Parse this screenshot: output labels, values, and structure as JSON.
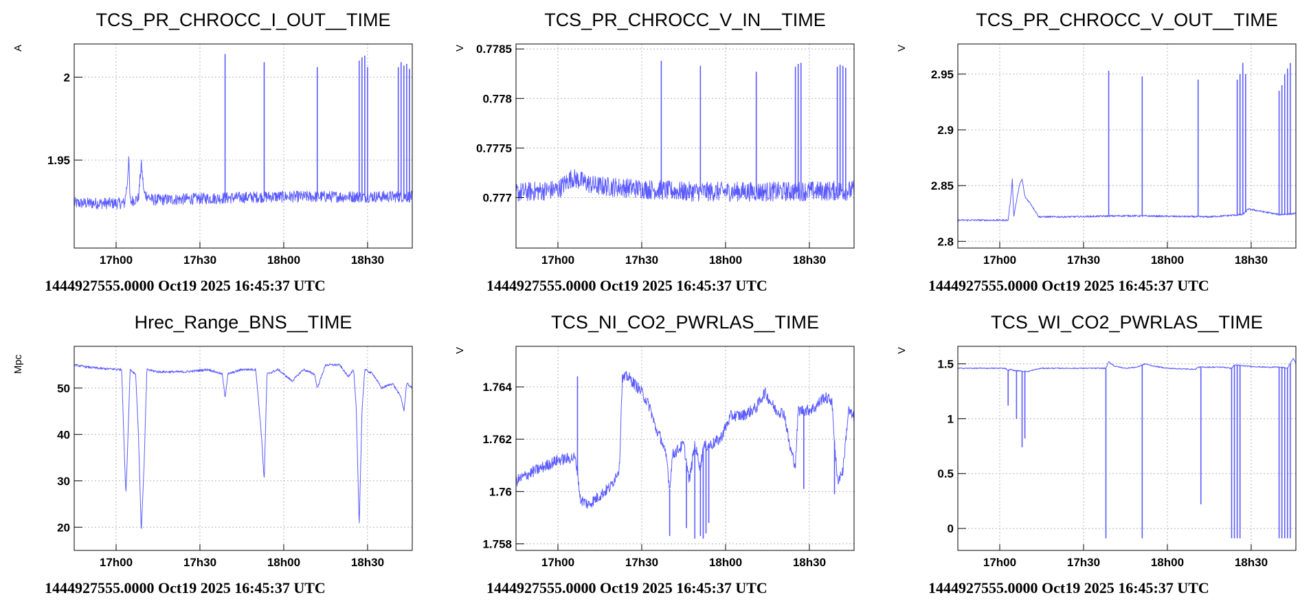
{
  "colors": {
    "trace": "#5a5aff",
    "frame": "#000000",
    "grid": "#b4b4b4",
    "background": "#ffffff"
  },
  "chart_data": [
    {
      "type": "line",
      "title": "TCS_PR_CHROCC_I_OUT__TIME",
      "ylabel": "A",
      "xlabel": "1444927555.0000 Oct19 2025 16:45:37 UTC",
      "x_tick_labels": [
        "17h00",
        "17h30",
        "18h00",
        "18h30"
      ],
      "x_tick_minutes": [
        15,
        45,
        75,
        105
      ],
      "xlim_minutes": [
        0,
        121
      ],
      "y_tick_labels": [
        "1.95",
        "2"
      ],
      "y_ticks": [
        1.95,
        2.0
      ],
      "ylim": [
        1.897,
        2.02
      ],
      "grid": true,
      "noise": 0.0035,
      "series": [
        {
          "points": [
            [
              0,
              1.924
            ],
            [
              18,
              1.924
            ],
            [
              19,
              1.936
            ],
            [
              19.5,
              1.952
            ],
            [
              20,
              1.925
            ],
            [
              23,
              1.927
            ],
            [
              24,
              1.948
            ],
            [
              25,
              1.93
            ],
            [
              28,
              1.926
            ],
            [
              50,
              1.927
            ],
            [
              70,
              1.928
            ],
            [
              100,
              1.928
            ],
            [
              121,
              1.928
            ]
          ]
        }
      ],
      "spikes": [
        [
          54,
          2.014
        ],
        [
          68,
          2.009
        ],
        [
          87,
          2.006
        ],
        [
          102,
          2.01
        ],
        [
          103,
          2.012
        ],
        [
          104,
          2.013
        ],
        [
          105,
          2.006
        ],
        [
          116,
          2.006
        ],
        [
          117,
          2.009
        ],
        [
          118,
          2.007
        ],
        [
          119,
          2.008
        ],
        [
          120,
          2.005
        ]
      ]
    },
    {
      "type": "line",
      "title": "TCS_PR_CHROCC_V_IN__TIME",
      "ylabel": "V",
      "xlabel": "1444927555.0000 Oct19 2025 16:45:37 UTC",
      "x_tick_labels": [
        "17h00",
        "17h30",
        "18h00",
        "18h30"
      ],
      "x_tick_minutes": [
        15,
        45,
        75,
        105
      ],
      "xlim_minutes": [
        0,
        121
      ],
      "y_tick_labels": [
        "0.777",
        "0.7775",
        "0.778",
        "0.7785"
      ],
      "y_ticks": [
        0.777,
        0.7775,
        0.778,
        0.7785
      ],
      "ylim": [
        0.77649,
        0.77855
      ],
      "grid": true,
      "noise": 0.0001,
      "series": [
        {
          "points": [
            [
              0,
              0.77705
            ],
            [
              15,
              0.77708
            ],
            [
              20,
              0.7772
            ],
            [
              28,
              0.77712
            ],
            [
              60,
              0.77706
            ],
            [
              90,
              0.77706
            ],
            [
              121,
              0.77707
            ]
          ]
        }
      ],
      "spikes": [
        [
          52,
          0.77838
        ],
        [
          66,
          0.77833
        ],
        [
          86,
          0.77827
        ],
        [
          100,
          0.77832
        ],
        [
          101,
          0.77835
        ],
        [
          102,
          0.77836
        ],
        [
          115,
          0.77832
        ],
        [
          116,
          0.77834
        ],
        [
          117,
          0.77833
        ],
        [
          118,
          0.77831
        ]
      ]
    },
    {
      "type": "line",
      "title": "TCS_PR_CHROCC_V_OUT__TIME",
      "ylabel": "V",
      "xlabel": "1444927555.0000 Oct19 2025 16:45:37 UTC",
      "x_tick_labels": [
        "17h00",
        "17h30",
        "18h00",
        "18h30"
      ],
      "x_tick_minutes": [
        15,
        45,
        75,
        105
      ],
      "xlim_minutes": [
        0,
        121
      ],
      "y_tick_labels": [
        "2.8",
        "2.85",
        "2.9",
        "2.95"
      ],
      "y_ticks": [
        2.8,
        2.85,
        2.9,
        2.95
      ],
      "ylim": [
        2.794,
        2.977
      ],
      "grid": true,
      "noise": 0.0008,
      "series": [
        {
          "points": [
            [
              0,
              2.819
            ],
            [
              18,
              2.819
            ],
            [
              19,
              2.84
            ],
            [
              19.5,
              2.856
            ],
            [
              20,
              2.822
            ],
            [
              22,
              2.85
            ],
            [
              23,
              2.856
            ],
            [
              24,
              2.84
            ],
            [
              26,
              2.834
            ],
            [
              29,
              2.822
            ],
            [
              40,
              2.822
            ],
            [
              60,
              2.823
            ],
            [
              90,
              2.822
            ],
            [
              102,
              2.824
            ],
            [
              104,
              2.829
            ],
            [
              115,
              2.824
            ],
            [
              121,
              2.825
            ]
          ]
        }
      ],
      "spikes": [
        [
          54,
          2.953
        ],
        [
          66,
          2.948
        ],
        [
          86,
          2.945
        ],
        [
          100,
          2.945
        ],
        [
          101,
          2.95
        ],
        [
          102,
          2.96
        ],
        [
          103,
          2.95
        ],
        [
          115,
          2.935
        ],
        [
          116,
          2.94
        ],
        [
          117,
          2.95
        ],
        [
          118,
          2.955
        ],
        [
          119,
          2.96
        ]
      ]
    },
    {
      "type": "line",
      "title": "Hrec_Range_BNS__TIME",
      "ylabel": "Mpc",
      "xlabel": "1444927555.0000 Oct19 2025 16:45:37 UTC",
      "x_tick_labels": [
        "17h00",
        "17h30",
        "18h00",
        "18h30"
      ],
      "x_tick_minutes": [
        15,
        45,
        75,
        105
      ],
      "xlim_minutes": [
        0,
        121
      ],
      "y_tick_labels": [
        "20",
        "30",
        "40",
        "50"
      ],
      "y_ticks": [
        20,
        30,
        40,
        50
      ],
      "ylim": [
        15,
        59
      ],
      "grid": true,
      "noise": 0.25,
      "series": [
        {
          "points": [
            [
              0,
              55
            ],
            [
              5,
              54.5
            ],
            [
              10,
              54.2
            ],
            [
              17,
              54
            ],
            [
              18,
              35
            ],
            [
              18.5,
              27
            ],
            [
              19,
              35
            ],
            [
              20,
              54
            ],
            [
              22,
              53
            ],
            [
              23,
              40
            ],
            [
              24,
              19
            ],
            [
              25,
              33
            ],
            [
              26,
              54
            ],
            [
              30,
              53.5
            ],
            [
              40,
              53.5
            ],
            [
              48,
              54
            ],
            [
              53,
              53
            ],
            [
              54,
              48
            ],
            [
              55,
              53
            ],
            [
              60,
              54
            ],
            [
              65,
              54
            ],
            [
              67,
              40
            ],
            [
              68,
              30
            ],
            [
              69,
              53
            ],
            [
              73,
              54
            ],
            [
              78,
              51.5
            ],
            [
              82,
              54
            ],
            [
              86,
              53
            ],
            [
              87,
              50
            ],
            [
              90,
              55
            ],
            [
              95,
              55
            ],
            [
              98,
              52.5
            ],
            [
              100,
              54
            ],
            [
              101,
              45
            ],
            [
              102,
              20
            ],
            [
              103,
              45
            ],
            [
              104,
              54
            ],
            [
              107,
              53
            ],
            [
              110,
              50
            ],
            [
              114,
              51
            ],
            [
              117,
              48
            ],
            [
              118,
              45
            ],
            [
              119,
              51
            ],
            [
              121,
              50
            ]
          ]
        }
      ],
      "spikes": []
    },
    {
      "type": "line",
      "title": "TCS_NI_CO2_PWRLAS__TIME",
      "ylabel": "V",
      "xlabel": "1444927555.0000 Oct19 2025 16:45:37 UTC",
      "x_tick_labels": [
        "17h00",
        "17h30",
        "18h00",
        "18h30"
      ],
      "x_tick_minutes": [
        15,
        45,
        75,
        105
      ],
      "xlim_minutes": [
        0,
        121
      ],
      "y_tick_labels": [
        "1.758",
        "1.76",
        "1.762",
        "1.764"
      ],
      "y_ticks": [
        1.758,
        1.76,
        1.762,
        1.764
      ],
      "ylim": [
        1.75775,
        1.76555
      ],
      "grid": true,
      "noise": 0.00022,
      "series": [
        {
          "points": [
            [
              0,
              1.7604
            ],
            [
              5,
              1.7607
            ],
            [
              15,
              1.7612
            ],
            [
              21,
              1.7613
            ],
            [
              22,
              1.7608
            ],
            [
              23,
              1.7597
            ],
            [
              26,
              1.7595
            ],
            [
              34,
              1.7602
            ],
            [
              37,
              1.7609
            ],
            [
              38,
              1.7643
            ],
            [
              40,
              1.7644
            ],
            [
              45,
              1.7638
            ],
            [
              48,
              1.7632
            ],
            [
              50,
              1.7624
            ],
            [
              52,
              1.762
            ],
            [
              54,
              1.7612
            ],
            [
              55,
              1.7601
            ],
            [
              56,
              1.7614
            ],
            [
              60,
              1.7618
            ],
            [
              62,
              1.7604
            ],
            [
              64,
              1.7618
            ],
            [
              66,
              1.7609
            ],
            [
              67,
              1.7617
            ],
            [
              70,
              1.7618
            ],
            [
              73,
              1.762
            ],
            [
              77,
              1.7629
            ],
            [
              81,
              1.7629
            ],
            [
              86,
              1.7632
            ],
            [
              89,
              1.7638
            ],
            [
              93,
              1.7631
            ],
            [
              96,
              1.763
            ],
            [
              98,
              1.7617
            ],
            [
              100,
              1.761
            ],
            [
              101,
              1.7631
            ],
            [
              104,
              1.7631
            ],
            [
              107,
              1.7632
            ],
            [
              110,
              1.7636
            ],
            [
              113,
              1.7635
            ],
            [
              115,
              1.7604
            ],
            [
              117,
              1.7608
            ],
            [
              119,
              1.7631
            ],
            [
              121,
              1.7628
            ]
          ]
        }
      ],
      "spikes": [
        [
          22,
          1.7644
        ],
        [
          55,
          1.7583
        ],
        [
          61,
          1.7586
        ],
        [
          64,
          1.7582
        ],
        [
          66,
          1.7583
        ],
        [
          67,
          1.7582
        ],
        [
          68,
          1.7584
        ],
        [
          69,
          1.7588
        ],
        [
          103,
          1.7601
        ],
        [
          114,
          1.7599
        ]
      ]
    },
    {
      "type": "line",
      "title": "TCS_WI_CO2_PWRLAS__TIME",
      "ylabel": "V",
      "xlabel": "1444927555.0000 Oct19 2025 16:45:37 UTC",
      "x_tick_labels": [
        "17h00",
        "17h30",
        "18h00",
        "18h30"
      ],
      "x_tick_minutes": [
        15,
        45,
        75,
        105
      ],
      "xlim_minutes": [
        0,
        121
      ],
      "y_tick_labels": [
        "0",
        "0.5",
        "1",
        "1.5"
      ],
      "y_ticks": [
        0,
        0.5,
        1.0,
        1.5
      ],
      "ylim": [
        -0.2,
        1.66
      ],
      "grid": true,
      "noise": 0.005,
      "series": [
        {
          "points": [
            [
              0,
              1.46
            ],
            [
              17,
              1.46
            ],
            [
              18,
              1.44
            ],
            [
              19,
              1.45
            ],
            [
              20,
              1.44
            ],
            [
              25,
              1.43
            ],
            [
              28,
              1.45
            ],
            [
              30,
              1.46
            ],
            [
              40,
              1.46
            ],
            [
              53,
              1.46
            ],
            [
              54,
              1.52
            ],
            [
              56,
              1.48
            ],
            [
              60,
              1.46
            ],
            [
              64,
              1.47
            ],
            [
              67,
              1.5
            ],
            [
              70,
              1.48
            ],
            [
              75,
              1.46
            ],
            [
              85,
              1.45
            ],
            [
              86,
              1.47
            ],
            [
              95,
              1.47
            ],
            [
              98,
              1.46
            ],
            [
              99,
              1.49
            ],
            [
              103,
              1.48
            ],
            [
              110,
              1.47
            ],
            [
              115,
              1.47
            ],
            [
              118,
              1.46
            ],
            [
              120,
              1.55
            ],
            [
              121,
              1.51
            ]
          ]
        }
      ],
      "spikes": [
        [
          18,
          1.12
        ],
        [
          21,
          1.0
        ],
        [
          23,
          0.74
        ],
        [
          24,
          0.82
        ],
        [
          53,
          -0.09
        ],
        [
          66,
          -0.09
        ],
        [
          87,
          0.22
        ],
        [
          98,
          -0.09
        ],
        [
          99,
          -0.09
        ],
        [
          100,
          -0.09
        ],
        [
          101,
          -0.09
        ],
        [
          115,
          -0.09
        ],
        [
          116,
          -0.09
        ],
        [
          117,
          -0.09
        ],
        [
          118,
          -0.09
        ],
        [
          119,
          -0.09
        ]
      ]
    }
  ]
}
